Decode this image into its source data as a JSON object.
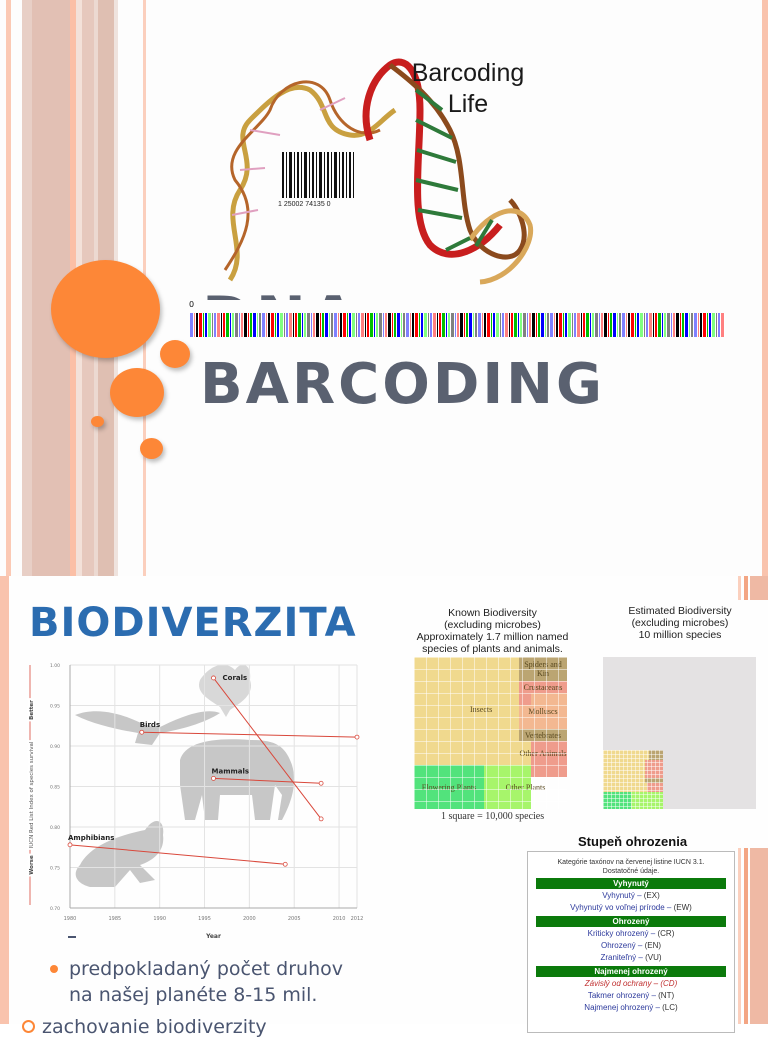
{
  "slide1": {
    "image_caption": [
      "Barcoding",
      "Life"
    ],
    "barcode_number": "1 25002 74135 0",
    "title_line1": "DNA",
    "title_line2": "BARCODING",
    "barcode_zero_label": "0",
    "colors": {
      "accent": "#fd8737",
      "title": "#5a6170",
      "stripe": "#f9c3ad",
      "barcode_A": "#00c000",
      "barcode_C": "#0000ff",
      "barcode_G": "#000000",
      "barcode_T": "#ff0000"
    }
  },
  "slide2": {
    "title": "BIODIVERZITA",
    "bullets": [
      {
        "text": "predpokladaný počet druhov",
        "level": 2
      },
      {
        "text": "na našej planéte 8-15 mil.",
        "level": 2,
        "continuation": true
      },
      {
        "text": "zachovanie biodiverzity",
        "level": 1
      }
    ],
    "known_biodiversity": {
      "title_lines": [
        "Known Biodiversity",
        "(excluding microbes)",
        "Approximately 1.7 million named",
        "species of plants and animals."
      ],
      "groups": [
        "Insects",
        "Spiders and Kin",
        "Crustaceans",
        "Molluscs",
        "Vertebrates",
        "Other Animals",
        "Flowering Plants",
        "Other Plants"
      ],
      "scale_note": "1 square = 10,000 species"
    },
    "estimated_biodiversity": {
      "title_lines": [
        "Estimated Biodiversity",
        "(excluding microbes)",
        "10 million species"
      ]
    },
    "threat_levels": {
      "heading": "Stupeň ohrozenia",
      "description": "Kategórie taxónov na červenej listine IUCN 3.1. Dostatočné údaje.",
      "categories": [
        {
          "name": "Vyhynutý",
          "items": [
            {
              "label": "Vyhynutý",
              "abbr": "(EX)"
            },
            {
              "label": "Vyhynutý vo voľnej prírode",
              "abbr": "(EW)"
            }
          ]
        },
        {
          "name": "Ohrozený",
          "items": [
            {
              "label": "Kriticky ohrozený",
              "abbr": "(CR)"
            },
            {
              "label": "Ohrozený",
              "abbr": "(EN)"
            },
            {
              "label": "Zraniteľný",
              "abbr": "(VU)"
            }
          ]
        },
        {
          "name": "Najmenej ohrozený",
          "items": [
            {
              "label": "Závislý od ochrany",
              "abbr": "(CD)"
            },
            {
              "label": "Takmer ohrozený",
              "abbr": "(NT)"
            },
            {
              "label": "Najmenej ohrozený",
              "abbr": "(LC)"
            }
          ]
        }
      ]
    }
  },
  "chart_data": {
    "type": "line",
    "title": "",
    "xlabel": "Year",
    "ylabel": "IUCN Red List Index of species survival",
    "y_direction_labels": {
      "top": "Better",
      "bottom": "Worse"
    },
    "xlim": [
      1980,
      2012
    ],
    "ylim": [
      0.7,
      1.0
    ],
    "x_ticks": [
      1980,
      1985,
      1990,
      1995,
      2000,
      2005,
      2010,
      2012
    ],
    "y_ticks": [
      "1.00",
      "0.95",
      "0.90",
      "0.85",
      "0.80",
      "0.75",
      "0.70"
    ],
    "grid": true,
    "series": [
      {
        "name": "Corals",
        "x": [
          1996,
          2008
        ],
        "y": [
          0.984,
          0.81
        ]
      },
      {
        "name": "Birds",
        "x": [
          1988,
          2012
        ],
        "y": [
          0.917,
          0.911
        ]
      },
      {
        "name": "Mammals",
        "x": [
          1996,
          2008
        ],
        "y": [
          0.86,
          0.854
        ]
      },
      {
        "name": "Amphibians",
        "x": [
          1980,
          2004
        ],
        "y": [
          0.778,
          0.754
        ]
      }
    ],
    "line_color": "#d9483b"
  }
}
